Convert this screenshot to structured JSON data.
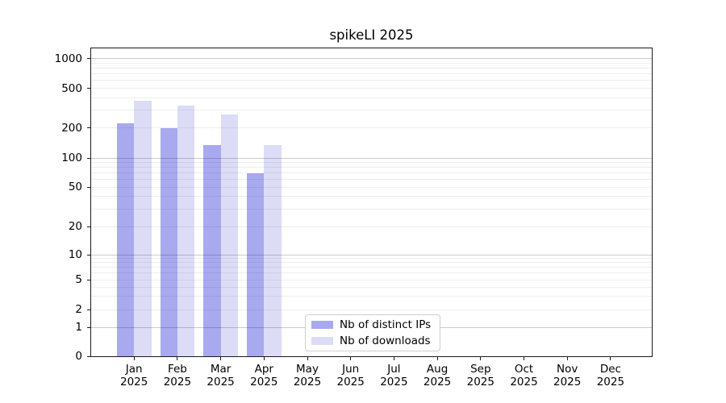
{
  "chart_data": {
    "type": "bar",
    "title": "spikeLI 2025",
    "categories": [
      {
        "month": "Jan",
        "year": "2025"
      },
      {
        "month": "Feb",
        "year": "2025"
      },
      {
        "month": "Mar",
        "year": "2025"
      },
      {
        "month": "Apr",
        "year": "2025"
      },
      {
        "month": "May",
        "year": "2025"
      },
      {
        "month": "Jun",
        "year": "2025"
      },
      {
        "month": "Jul",
        "year": "2025"
      },
      {
        "month": "Aug",
        "year": "2025"
      },
      {
        "month": "Sep",
        "year": "2025"
      },
      {
        "month": "Oct",
        "year": "2025"
      },
      {
        "month": "Nov",
        "year": "2025"
      },
      {
        "month": "Dec",
        "year": "2025"
      }
    ],
    "series": [
      {
        "name": "Nb of distinct IPs",
        "color": "#a9a9ef",
        "values": [
          220,
          200,
          134,
          70,
          null,
          null,
          null,
          null,
          null,
          null,
          null,
          null
        ]
      },
      {
        "name": "Nb of downloads",
        "color": "#dcdcf7",
        "values": [
          375,
          335,
          270,
          135,
          null,
          null,
          null,
          null,
          null,
          null,
          null,
          null
        ]
      }
    ],
    "y_axis": {
      "scale": "symlog",
      "range": [
        0,
        1000
      ],
      "ticks": [
        0,
        1,
        2,
        5,
        10,
        20,
        50,
        100,
        200,
        500,
        1000
      ],
      "tick_labels": [
        "0",
        "1",
        "2",
        "5",
        "10",
        "20",
        "50",
        "100",
        "200",
        "500",
        "1000"
      ],
      "grid": "on"
    },
    "legend": {
      "position": "lower-center",
      "entries": [
        "Nb of distinct IPs",
        "Nb of downloads"
      ]
    }
  }
}
